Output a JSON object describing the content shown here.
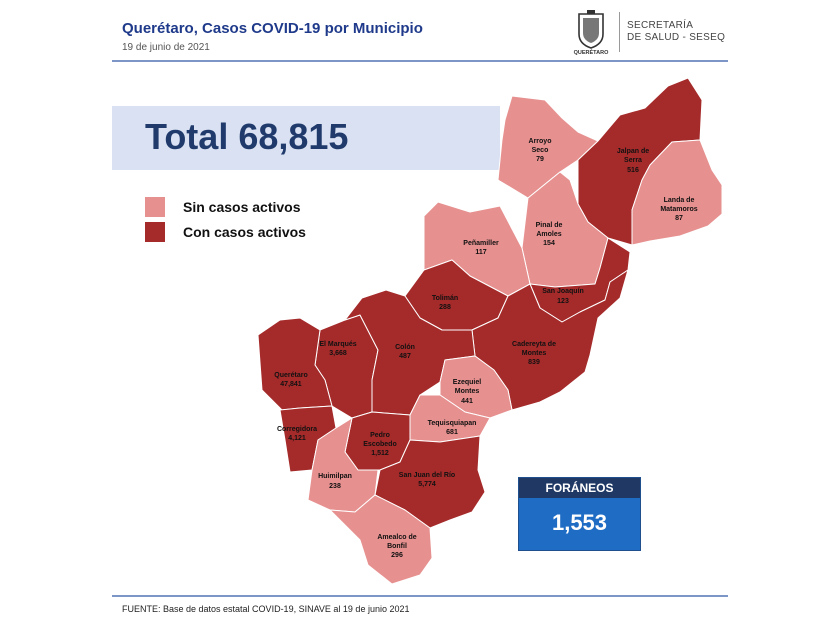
{
  "header": {
    "title": "Querétaro, Casos COVID-19 por Municipio",
    "date": "19 de junio  de 2021"
  },
  "logo": {
    "caption": "QUERÉTARO",
    "line1": "SECRETARÍA",
    "line2": "DE SALUD - SESEQ"
  },
  "total": {
    "label": "Total 68,815"
  },
  "legend": {
    "items": [
      {
        "label": "Sin casos activos",
        "color": "#e6908f"
      },
      {
        "label": "Con casos activos",
        "color": "#a52a2a"
      }
    ]
  },
  "colors": {
    "sin": "#e6908f",
    "con": "#a52a2a"
  },
  "municipalities": [
    {
      "name": "Arroyo Seco",
      "line1": "Arroyo",
      "line2": "Seco",
      "cases": "79",
      "status": "sin"
    },
    {
      "name": "Jalpan de Serra",
      "line1": "Jalpan de",
      "line2": "Serra",
      "cases": "516",
      "status": "con"
    },
    {
      "name": "Landa de Matamoros",
      "line1": "Landa de",
      "line2": "Matamoros",
      "cases": "87",
      "status": "sin"
    },
    {
      "name": "Pinal de Amoles",
      "line1": "Pinal de",
      "line2": "Amoles",
      "cases": "154",
      "status": "sin"
    },
    {
      "name": "Peñamiller",
      "line1": "Peñamiller",
      "line2": "",
      "cases": "117",
      "status": "sin"
    },
    {
      "name": "San Joaquín",
      "line1": "San Joaquín",
      "line2": "",
      "cases": "123",
      "status": "con"
    },
    {
      "name": "Tolimán",
      "line1": "Tolimán",
      "line2": "",
      "cases": "288",
      "status": "con"
    },
    {
      "name": "Cadereyta de Montes",
      "line1": "Cadereyta de",
      "line2": "Montes",
      "cases": "839",
      "status": "con"
    },
    {
      "name": "El Marqués",
      "line1": "El  Marqués",
      "line2": "",
      "cases": "3,668",
      "status": "con"
    },
    {
      "name": "Colón",
      "line1": "Colón",
      "line2": "",
      "cases": "487",
      "status": "con"
    },
    {
      "name": "Querétaro",
      "line1": "Querétaro",
      "line2": "",
      "cases": "47,841",
      "status": "con"
    },
    {
      "name": "Ezequiel Montes",
      "line1": "Ezequiel",
      "line2": "Montes",
      "cases": "441",
      "status": "sin"
    },
    {
      "name": "Corregidora",
      "line1": "Corregidora",
      "line2": "",
      "cases": "4,121",
      "status": "con"
    },
    {
      "name": "Tequisquiapan",
      "line1": "Tequisquiapan",
      "line2": "",
      "cases": "681",
      "status": "sin"
    },
    {
      "name": "Pedro Escobedo",
      "line1": "Pedro",
      "line2": "Escobedo",
      "cases": "1,512",
      "status": "con"
    },
    {
      "name": "Huimilpan",
      "line1": "Huimilpan",
      "line2": "",
      "cases": "238",
      "status": "sin"
    },
    {
      "name": "San Juan del Río",
      "line1": "San Juan del Río",
      "line2": "",
      "cases": "5,774",
      "status": "con"
    },
    {
      "name": "Amealco de Bonfil",
      "line1": "Amealco de",
      "line2": "Bonfil",
      "cases": "296",
      "status": "sin"
    }
  ],
  "foraneos": {
    "label": "FORÁNEOS",
    "value": "1,553"
  },
  "footer": {
    "source": "FUENTE:  Base de datos estatal COVID-19,  SINAVE  al 19 de junio  2021"
  }
}
